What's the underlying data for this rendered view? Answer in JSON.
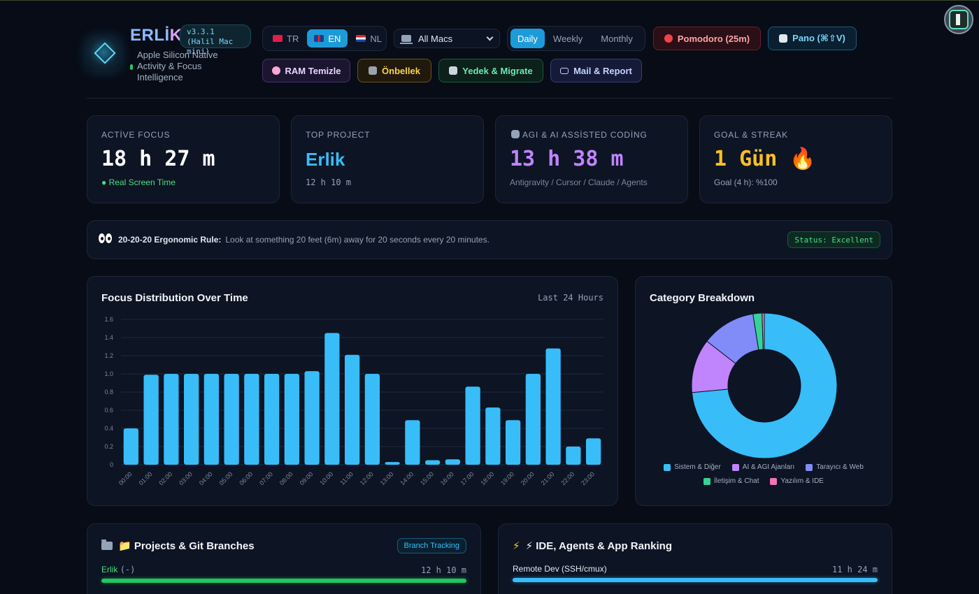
{
  "header": {
    "brand_main": "ERLİ",
    "brand_accent": "K",
    "version": "v3.3.1 (Halil Mac mini)",
    "tagline": "Apple Silicon Native Activity & Focus Intelligence",
    "languages": [
      {
        "code": "TR",
        "active": false
      },
      {
        "code": "EN",
        "active": true
      },
      {
        "code": "NL",
        "active": false
      }
    ],
    "mac_select": "All Macs",
    "periods": [
      {
        "label": "Daily",
        "active": true
      },
      {
        "label": "Weekly",
        "active": false
      },
      {
        "label": "Monthly",
        "active": false
      }
    ],
    "pomodoro": "Pomodoro (25m)",
    "pano": "Pano (⌘⇧V)",
    "ram_clean": "RAM Temizle",
    "cache": "Önbellek",
    "backup": "Yedek & Migrate",
    "mail": "Mail & Report"
  },
  "stats": {
    "active_focus": {
      "label": "Actİve Focus",
      "value": "18 h 27 m",
      "sub": "Real Screen Time"
    },
    "top_project": {
      "label": "Top Project",
      "value": "Erlik",
      "sub": "12 h 10 m"
    },
    "ai_coding": {
      "label": "AGI & AI Assİsted Codİng",
      "value": "13 h 38 m",
      "sub": "Antigravity / Cursor / Claude / Agents"
    },
    "goal": {
      "label": "Goal & Streak",
      "value": "1 Gün 🔥",
      "sub": "Goal (4 h): %100"
    }
  },
  "rule": {
    "title": "20-20-20 Ergonomic Rule:",
    "text": "Look at something 20 feet (6m) away for 20 seconds every 20 minutes.",
    "status": "Status: Excellent"
  },
  "focus_panel": {
    "title": "Focus Distribution Over Time",
    "range": "Last 24 Hours"
  },
  "category_panel": {
    "title": "Category Breakdown"
  },
  "chart_data": [
    {
      "type": "bar",
      "title": "Focus Distribution Over Time",
      "categories": [
        "00:00",
        "01:00",
        "02:00",
        "03:00",
        "04:00",
        "05:00",
        "06:00",
        "07:00",
        "08:00",
        "09:00",
        "10:00",
        "11:00",
        "12:00",
        "13:00",
        "14:00",
        "15:00",
        "16:00",
        "17:00",
        "18:00",
        "19:00",
        "20:00",
        "21:00",
        "22:00",
        "23:00"
      ],
      "values": [
        0.4,
        0.99,
        1.0,
        1.0,
        1.0,
        1.0,
        1.0,
        1.0,
        1.0,
        1.03,
        1.45,
        1.21,
        1.0,
        0.03,
        0.49,
        0.05,
        0.06,
        0.86,
        0.63,
        0.49,
        1.0,
        1.28,
        0.2,
        0.29
      ],
      "ylim": [
        0,
        1.6
      ],
      "yticks": [
        "0",
        "0.2",
        "0.4",
        "0.6",
        "0.8",
        "1.0",
        "1.2",
        "1.4",
        "1.6"
      ],
      "grid": true,
      "color": "#38bdf8"
    },
    {
      "type": "pie",
      "title": "Category Breakdown",
      "donut": true,
      "labels": [
        "Sistem & Diğer",
        "AI & AGI Ajanları",
        "Tarayıcı & Web",
        "İletişim & Chat",
        "Yazılım & IDE"
      ],
      "values": [
        73.5,
        12,
        12,
        2,
        0.5
      ],
      "colors": [
        "#38bdf8",
        "#c084fc",
        "#818cf8",
        "#34d399",
        "#f472b6"
      ],
      "legend": "bottom"
    }
  ],
  "projects": {
    "title": "📁 Projects & Git Branches",
    "badge": "Branch Tracking",
    "items": [
      {
        "name": "Erlik",
        "branch": "(-)",
        "time": "12 h 10 m",
        "fraction": 1.0
      }
    ]
  },
  "ranking": {
    "title": "⚡ IDE, Agents & App Ranking",
    "items": [
      {
        "name": "Remote Dev (SSH/cmux)",
        "time": "11 h 24 m",
        "fraction": 1.0
      }
    ]
  },
  "colors": {
    "accent": "#38bdf8",
    "success": "#4ade80",
    "ai": "#c084fc",
    "goal": "#fbbf24"
  }
}
